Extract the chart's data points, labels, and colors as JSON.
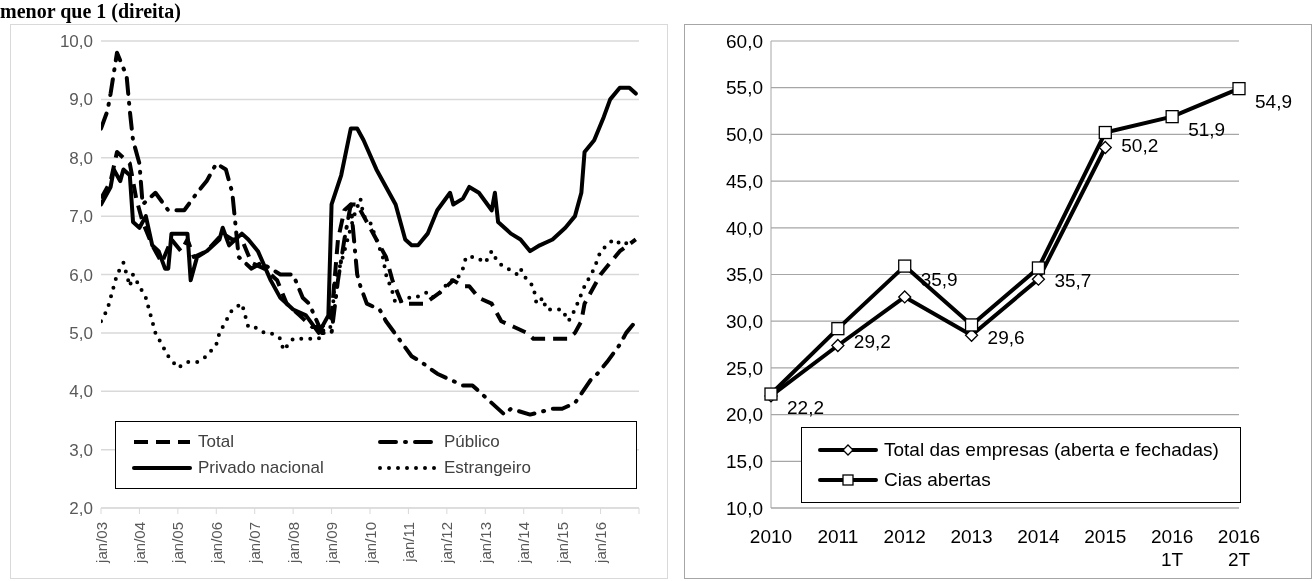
{
  "chart_data": [
    {
      "type": "line",
      "title": "menor que 1 (direita)",
      "xlim": [
        "2003-01",
        "2017-01"
      ],
      "xticks": [
        {
          "value": "2003-01",
          "label": "jan/03"
        },
        {
          "value": "2004-01",
          "label": "jan/04"
        },
        {
          "value": "2005-01",
          "label": "jan/05"
        },
        {
          "value": "2006-01",
          "label": "jan/06"
        },
        {
          "value": "2007-01",
          "label": "jan/07"
        },
        {
          "value": "2008-01",
          "label": "jan/08"
        },
        {
          "value": "2009-01",
          "label": "jan/09"
        },
        {
          "value": "2010-01",
          "label": "jan/10"
        },
        {
          "value": "2011-01",
          "label": "jan/11"
        },
        {
          "value": "2012-01",
          "label": "jan/12"
        },
        {
          "value": "2013-01",
          "label": "jan/13"
        },
        {
          "value": "2014-01",
          "label": "jan/14"
        },
        {
          "value": "2015-01",
          "label": "jan/15"
        },
        {
          "value": "2016-01",
          "label": "jan/16"
        },
        {
          "value": "2017-01",
          "label": null
        }
      ],
      "ylim": [
        2,
        10
      ],
      "yticks": [
        {
          "value": 2,
          "label": "2,0"
        },
        {
          "value": 3,
          "label": "3,0"
        },
        {
          "value": 4,
          "label": "4,0"
        },
        {
          "value": 5,
          "label": "5,0"
        },
        {
          "value": 6,
          "label": "6,0"
        },
        {
          "value": 7,
          "label": "7,0"
        },
        {
          "value": 8,
          "label": "8,0"
        },
        {
          "value": 9,
          "label": "9,0"
        },
        {
          "value": 10,
          "label": "10,0"
        }
      ],
      "grid": "y",
      "legend": "bottom",
      "marker": "none",
      "series": [
        {
          "name": "Total",
          "color": "#000000",
          "line_style": "dashed",
          "x": [
            "2003-01",
            "2003-04",
            "2003-06",
            "2003-08",
            "2003-10",
            "2003-12",
            "2004-02",
            "2004-05",
            "2004-08",
            "2004-11",
            "2005-02",
            "2005-04",
            "2005-06",
            "2005-10",
            "2006-03",
            "2006-06",
            "2006-09",
            "2006-12",
            "2007-04",
            "2007-08",
            "2007-11",
            "2008-03",
            "2008-07",
            "2008-10",
            "2009-01",
            "2009-03",
            "2009-05",
            "2009-07",
            "2009-09",
            "2009-11",
            "2010-03",
            "2010-06",
            "2010-08",
            "2010-11",
            "2011-01",
            "2011-06",
            "2011-11",
            "2012-03",
            "2012-06",
            "2012-08",
            "2012-11",
            "2013-03",
            "2013-06",
            "2013-10",
            "2014-02",
            "2014-04",
            "2014-08",
            "2015-03",
            "2015-05",
            "2015-07",
            "2015-08",
            "2015-10",
            "2016-01",
            "2016-04",
            "2016-07",
            "2016-12"
          ],
          "values": [
            7.3,
            7.6,
            8.1,
            8.0,
            7.9,
            7.3,
            6.9,
            6.5,
            6.2,
            6.6,
            6.4,
            6.6,
            6.3,
            6.4,
            6.7,
            6.6,
            6.6,
            6.2,
            6.1,
            5.9,
            5.5,
            5.3,
            5.1,
            5.1,
            5.3,
            6.6,
            7.1,
            7.2,
            7.2,
            7.0,
            6.6,
            6.3,
            5.9,
            5.5,
            5.5,
            5.5,
            5.7,
            5.9,
            5.8,
            5.8,
            5.6,
            5.5,
            5.2,
            5.1,
            5.0,
            4.9,
            4.9,
            4.9,
            5.0,
            5.2,
            5.5,
            5.7,
            6.0,
            6.2,
            6.4,
            6.6
          ]
        },
        {
          "name": "Público",
          "color": "#000000",
          "line_style": "dashdot",
          "x": [
            "2003-01",
            "2003-03",
            "2003-04",
            "2003-06",
            "2003-09",
            "2003-10",
            "2003-11",
            "2004-01",
            "2004-02",
            "2004-06",
            "2004-10",
            "2005-03",
            "2005-07",
            "2005-10",
            "2006-01",
            "2006-04",
            "2006-06",
            "2006-08",
            "2006-12",
            "2007-03",
            "2007-09",
            "2008-01",
            "2008-04",
            "2008-06",
            "2008-10",
            "2009-01",
            "2009-03",
            "2009-05",
            "2009-07",
            "2009-09",
            "2009-10",
            "2009-12",
            "2010-04",
            "2010-06",
            "2010-10",
            "2011-02",
            "2011-05",
            "2011-10",
            "2012-06",
            "2012-09",
            "2013-01",
            "2013-07",
            "2013-09",
            "2014-03",
            "2014-10",
            "2015-01",
            "2015-05",
            "2015-10",
            "2015-12",
            "2016-03",
            "2016-07",
            "2016-09",
            "2016-12"
          ],
          "values": [
            8.5,
            8.8,
            9.1,
            9.8,
            9.4,
            8.8,
            8.3,
            7.9,
            7.2,
            7.4,
            7.1,
            7.1,
            7.4,
            7.6,
            7.9,
            7.8,
            7.4,
            6.3,
            6.1,
            6.2,
            6.0,
            6.0,
            5.6,
            5.5,
            5.0,
            5.0,
            5.9,
            6.6,
            7.2,
            6.0,
            5.8,
            5.5,
            5.4,
            5.2,
            4.9,
            4.6,
            4.5,
            4.3,
            4.1,
            4.1,
            3.9,
            3.6,
            3.7,
            3.6,
            3.7,
            3.7,
            3.8,
            4.2,
            4.3,
            4.5,
            4.8,
            5.0,
            5.2
          ]
        },
        {
          "name": "Privado nacional",
          "color": "#000000",
          "line_style": "solid",
          "x": [
            "2003-01",
            "2003-04",
            "2003-05",
            "2003-07",
            "2003-08",
            "2003-10",
            "2003-11",
            "2004-01",
            "2004-03",
            "2004-05",
            "2004-07",
            "2004-09",
            "2004-10",
            "2004-11",
            "2005-04",
            "2005-05",
            "2005-07",
            "2005-10",
            "2006-02",
            "2006-03",
            "2006-05",
            "2006-09",
            "2006-11",
            "2007-02",
            "2007-06",
            "2007-09",
            "2008-01",
            "2008-05",
            "2008-09",
            "2008-12",
            "2009-01",
            "2009-04",
            "2009-07",
            "2009-09",
            "2009-11",
            "2010-03",
            "2010-06",
            "2010-09",
            "2010-12",
            "2011-02",
            "2011-04",
            "2011-07",
            "2011-10",
            "2012-02",
            "2012-03",
            "2012-06",
            "2012-08",
            "2012-11",
            "2013-03",
            "2013-04",
            "2013-05",
            "2013-09",
            "2013-12",
            "2014-03",
            "2014-06",
            "2014-10",
            "2015-02",
            "2015-05",
            "2015-07",
            "2015-08",
            "2015-11",
            "2016-02",
            "2016-04",
            "2016-07",
            "2016-10",
            "2016-12"
          ],
          "values": [
            7.2,
            7.5,
            7.8,
            7.6,
            7.8,
            7.7,
            6.9,
            6.8,
            7.0,
            6.5,
            6.4,
            6.1,
            6.1,
            6.7,
            6.7,
            5.9,
            6.3,
            6.4,
            6.6,
            6.8,
            6.5,
            6.7,
            6.6,
            6.4,
            5.9,
            5.6,
            5.4,
            5.3,
            5.0,
            5.3,
            7.2,
            7.7,
            8.5,
            8.5,
            8.3,
            7.8,
            7.5,
            7.2,
            6.6,
            6.5,
            6.5,
            6.7,
            7.1,
            7.4,
            7.2,
            7.3,
            7.5,
            7.4,
            7.1,
            7.4,
            6.9,
            6.7,
            6.6,
            6.4,
            6.5,
            6.6,
            6.8,
            7.0,
            7.4,
            8.1,
            8.3,
            8.7,
            9.0,
            9.2,
            9.2,
            9.1
          ]
        },
        {
          "name": "Estrangeiro",
          "color": "#000000",
          "line_style": "dotted",
          "x": [
            "2003-01",
            "2003-03",
            "2003-04",
            "2003-05",
            "2003-06",
            "2003-08",
            "2003-09",
            "2003-10",
            "2003-11",
            "2004-01",
            "2004-03",
            "2004-04",
            "2004-05",
            "2004-06",
            "2004-08",
            "2004-10",
            "2005-01",
            "2005-04",
            "2005-06",
            "2005-07",
            "2005-10",
            "2006-01",
            "2006-02",
            "2006-04",
            "2006-06",
            "2006-09",
            "2006-10",
            "2006-11",
            "2007-01",
            "2007-04",
            "2007-06",
            "2007-09",
            "2007-10",
            "2008-01",
            "2008-03",
            "2008-06",
            "2008-09",
            "2008-11",
            "2009-01",
            "2009-02",
            "2009-04",
            "2009-05",
            "2009-06",
            "2009-07",
            "2009-08",
            "2009-10",
            "2009-11",
            "2010-01",
            "2010-03",
            "2010-05",
            "2010-06",
            "2010-08",
            "2010-09",
            "2011-01",
            "2011-03",
            "2011-07",
            "2011-09",
            "2011-11",
            "2012-02",
            "2012-04",
            "2012-06",
            "2012-07",
            "2012-10",
            "2013-01",
            "2013-02",
            "2013-03",
            "2013-05",
            "2013-08",
            "2013-11",
            "2013-12",
            "2014-02",
            "2014-04",
            "2014-05",
            "2014-07",
            "2014-08",
            "2014-11",
            "2015-01",
            "2015-03",
            "2015-05",
            "2015-08",
            "2015-09",
            "2015-11",
            "2016-01",
            "2016-03",
            "2016-05",
            "2016-08",
            "2016-11"
          ],
          "values": [
            5.2,
            5.4,
            5.6,
            5.8,
            6.0,
            6.2,
            6.0,
            5.8,
            6.0,
            5.8,
            5.6,
            5.4,
            5.2,
            5.0,
            4.8,
            4.6,
            4.4,
            4.5,
            4.5,
            4.5,
            4.6,
            4.8,
            5.0,
            5.2,
            5.4,
            5.5,
            5.3,
            5.1,
            5.1,
            5.0,
            5.0,
            4.9,
            4.7,
            4.9,
            4.9,
            4.9,
            4.9,
            5.1,
            5.1,
            5.9,
            6.2,
            6.4,
            6.6,
            6.8,
            7.0,
            7.3,
            7.0,
            6.9,
            6.6,
            6.3,
            6.0,
            5.7,
            5.5,
            5.6,
            5.6,
            5.7,
            5.6,
            5.7,
            5.9,
            5.9,
            6.1,
            6.3,
            6.3,
            6.2,
            6.3,
            6.4,
            6.2,
            6.1,
            6.0,
            6.1,
            5.9,
            5.8,
            5.5,
            5.6,
            5.4,
            5.4,
            5.4,
            5.2,
            5.4,
            5.8,
            5.9,
            6.1,
            6.4,
            6.5,
            6.6,
            6.5,
            6.6
          ]
        }
      ]
    },
    {
      "type": "line",
      "categories": [
        "2010",
        "2011",
        "2012",
        "2013",
        "2014",
        "2015",
        "2016\n1T",
        "2016\n2T"
      ],
      "ylim": [
        10,
        60
      ],
      "yticks": [
        {
          "value": 10,
          "label": "10,0"
        },
        {
          "value": 15,
          "label": "15,0"
        },
        {
          "value": 20,
          "label": "20,0"
        },
        {
          "value": 25,
          "label": "25,0"
        },
        {
          "value": 30,
          "label": "30,0"
        },
        {
          "value": 35,
          "label": "35,0"
        },
        {
          "value": 40,
          "label": "40,0"
        },
        {
          "value": 45,
          "label": "45,0"
        },
        {
          "value": 50,
          "label": "50,0"
        },
        {
          "value": 55,
          "label": "55,0"
        },
        {
          "value": 60,
          "label": "60,0"
        }
      ],
      "grid": "y",
      "legend": "bottom",
      "series": [
        {
          "name": "Total das empresas (aberta e fechadas)",
          "color": "#000000",
          "marker": "diamond",
          "values": [
            22.0,
            27.4,
            32.6,
            28.5,
            34.5,
            48.6,
            null,
            null
          ]
        },
        {
          "name": "Cias abertas",
          "color": "#000000",
          "marker": "square",
          "values": [
            22.2,
            29.2,
            35.9,
            29.6,
            35.7,
            50.2,
            51.9,
            54.9
          ],
          "value_labels": [
            "22,2",
            "29,2",
            "35,9",
            "29,6",
            "35,7",
            "50,2",
            "51,9",
            "54,9"
          ]
        }
      ]
    }
  ]
}
